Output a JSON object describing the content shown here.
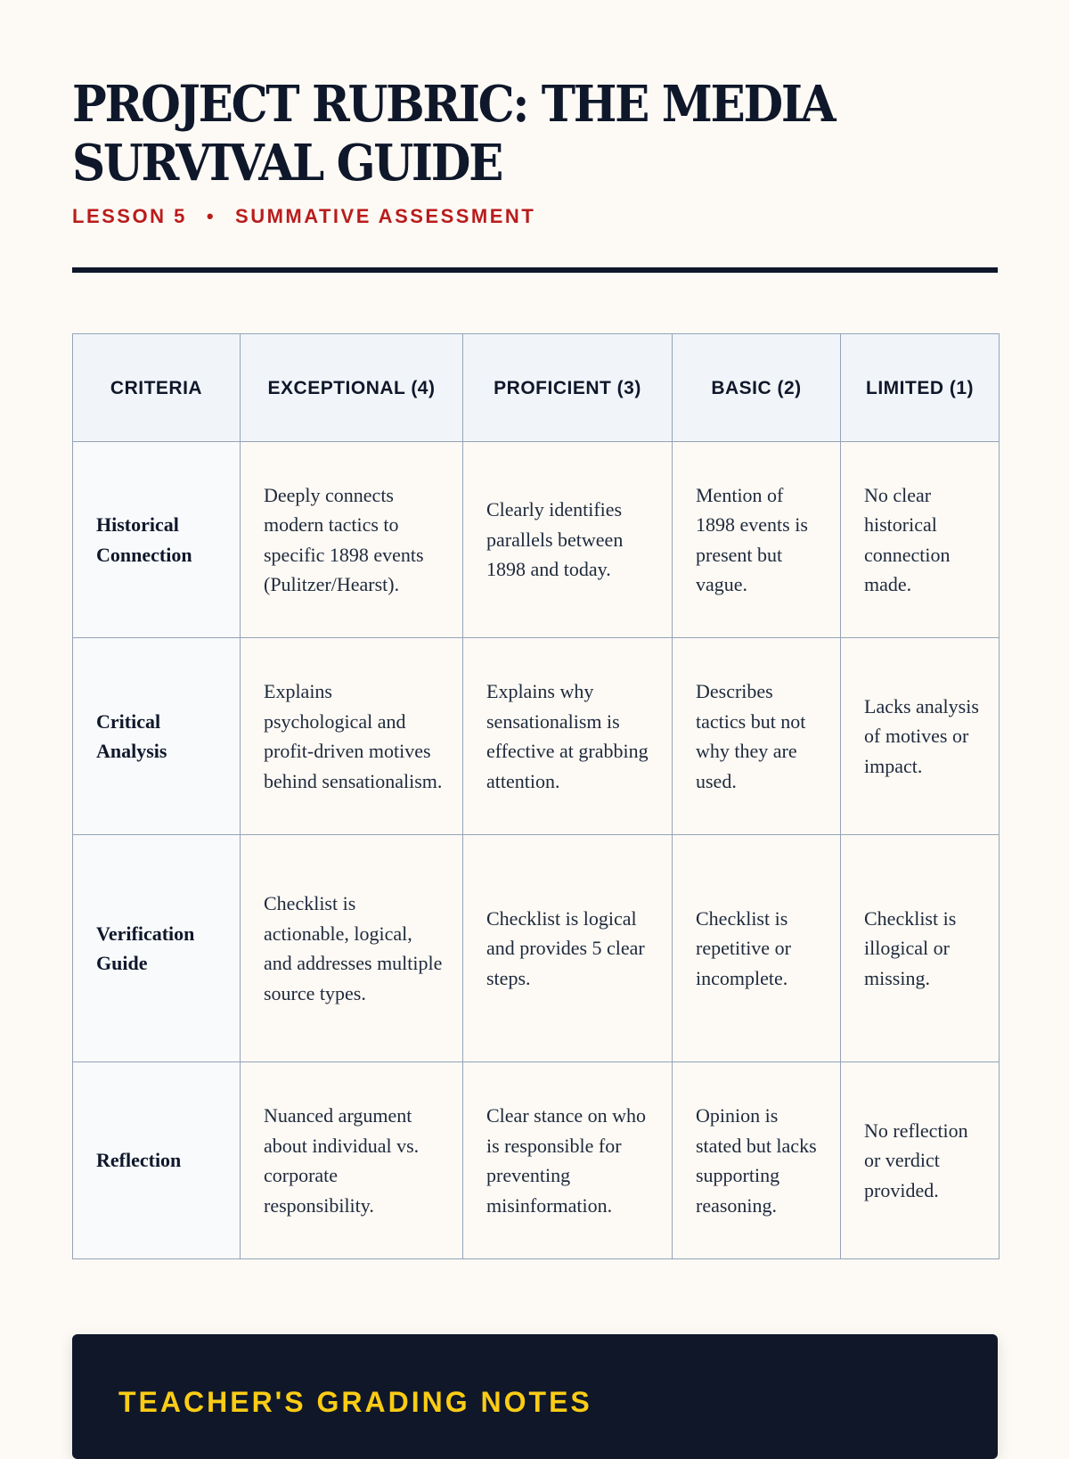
{
  "header": {
    "title": "PROJECT RUBRIC: THE MEDIA SURVIVAL GUIDE",
    "lesson": "LESSON 5",
    "separator": "•",
    "assessment": "SUMMATIVE ASSESSMENT"
  },
  "rubric": {
    "columns": [
      "CRITERIA",
      "EXCEPTIONAL (4)",
      "PROFICIENT (3)",
      "BASIC (2)",
      "LIMITED (1)"
    ],
    "rows": [
      [
        "Historical Connection",
        "Deeply connects modern tactics to specific 1898 events (Pulitzer/Hearst).",
        "Clearly identifies parallels between 1898 and today.",
        "Mention of 1898 events is present but vague.",
        "No clear historical connection made."
      ],
      [
        "Critical Analysis",
        "Explains psychological and profit-driven motives behind sensationalism.",
        "Explains why sensationalism is effective at grabbing attention.",
        "Describes tactics but not why they are used.",
        "Lacks analysis of motives or impact."
      ],
      [
        "Verification Guide",
        "Checklist is actionable, logical, and addresses multiple source types.",
        "Checklist is logical and provides 5 clear steps.",
        "Checklist is repetitive or incomplete.",
        "Checklist is illogical or missing."
      ],
      [
        "Reflection",
        "Nuanced argument about individual vs. corporate responsibility.",
        "Clear stance on who is responsible for preventing misinformation.",
        "Opinion is stated but lacks supporting reasoning.",
        "No reflection or verdict provided."
      ]
    ]
  },
  "notes": {
    "title": "TEACHER'S GRADING NOTES"
  },
  "colors": {
    "accent_red": "#b91c1c",
    "navy": "#0f172a",
    "notes_title": "#facc15"
  }
}
